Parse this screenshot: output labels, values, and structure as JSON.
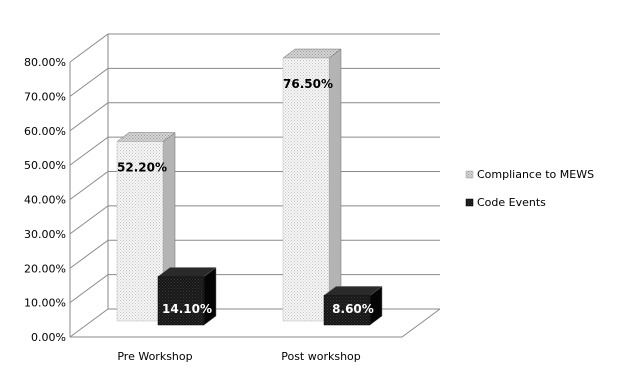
{
  "chart_data": {
    "type": "bar",
    "title": "",
    "xlabel": "",
    "ylabel": "",
    "categories": [
      "Pre Workshop",
      "Post workshop"
    ],
    "series": [
      {
        "name": "Compliance to MEWS",
        "values": [
          52.2,
          76.5
        ],
        "labels": [
          "52.20%",
          "76.50%"
        ],
        "color": "#ececec",
        "label_color": "#000000"
      },
      {
        "name": "Code Events",
        "values": [
          14.1,
          8.6
        ],
        "labels": [
          "14.10%",
          "8.60%"
        ],
        "color": "#1a1a1a",
        "label_color": "#ffffff"
      }
    ],
    "ylim": [
      0,
      80
    ],
    "yticks": [
      "0.00%",
      "10.00%",
      "20.00%",
      "30.00%",
      "40.00%",
      "50.00%",
      "60.00%",
      "70.00%",
      "80.00%"
    ],
    "grid": true,
    "legend_position": "right",
    "style": "3d-clustered-column"
  }
}
